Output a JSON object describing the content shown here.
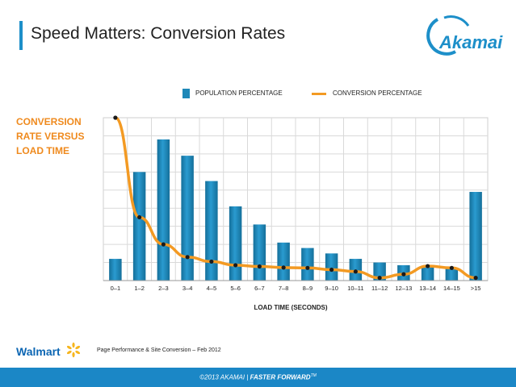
{
  "header": {
    "title": "Speed Matters: Conversion Rates",
    "logo_text": "Akamai"
  },
  "side_label": "CONVERSION RATE VERSUS LOAD TIME",
  "legend": {
    "population": "POPULATION PERCENTAGE",
    "conversion": "CONVERSION PERCENTAGE"
  },
  "chart_data": {
    "type": "bar",
    "categories": [
      "0–1",
      "1–2",
      "2–3",
      "3–4",
      "4–5",
      "5–6",
      "6–7",
      "7–8",
      "8–9",
      "9–10",
      "10–11",
      "11–12",
      "12–13",
      "13–14",
      "14–15",
      ">15"
    ],
    "xlabel": "LOAD TIME (SECONDS)",
    "ylabel": "",
    "series": [
      {
        "name": "POPULATION PERCENTAGE",
        "kind": "bar",
        "color": "#1e88b8",
        "values": [
          1.2,
          6.0,
          7.8,
          6.9,
          5.5,
          4.1,
          3.1,
          2.1,
          1.8,
          1.5,
          1.2,
          1.0,
          0.85,
          0.75,
          0.7,
          4.9
        ]
      },
      {
        "name": "CONVERSION PERCENTAGE",
        "kind": "line",
        "color": "#f39a23",
        "values": [
          9.0,
          3.5,
          2.0,
          1.3,
          1.05,
          0.85,
          0.78,
          0.72,
          0.7,
          0.6,
          0.5,
          0.15,
          0.35,
          0.8,
          0.7,
          0.15
        ]
      }
    ],
    "ylim": [
      0,
      9
    ],
    "grid": true,
    "legend_position": "top"
  },
  "walmart": {
    "text": "Walmart"
  },
  "source": "Page  Performance & Site Conversion – Feb 2012",
  "footer": {
    "copyright": "©2013 AKAMAI",
    "separator": "|",
    "tagline": "FASTER FORWARD",
    "tm": "TM"
  },
  "colors": {
    "accent": "#1d8fc9",
    "bar": "#1e88b8",
    "line": "#f39a23",
    "side_label": "#ef8a1e",
    "footer": "#1b87c6"
  }
}
